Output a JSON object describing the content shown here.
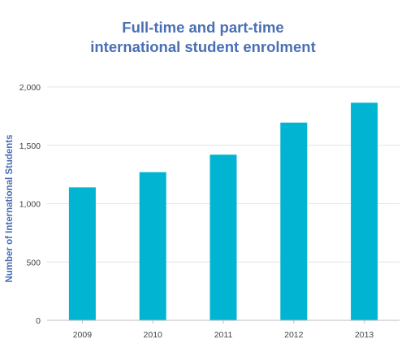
{
  "chart_data": {
    "type": "bar",
    "title_lines": [
      "Full-time and part-time",
      "international student enrolment"
    ],
    "xlabel": "",
    "ylabel": "Number of International Students",
    "categories": [
      "2009",
      "2010",
      "2011",
      "2012",
      "2013"
    ],
    "values": [
      1140,
      1270,
      1420,
      1695,
      1865
    ],
    "ylim": [
      0,
      2000
    ],
    "yticks": [
      0,
      500,
      1000,
      1500,
      2000
    ],
    "ytick_labels": [
      "0",
      "500",
      "1,000",
      "1,500",
      "2,000"
    ],
    "grid": true,
    "legend": "none",
    "colors": {
      "bar": "#00b4d2",
      "title": "#4a6fb5",
      "ylabel": "#4a6fb5",
      "grid": "#e4e4e4",
      "axis": "#bfbfbf",
      "tick_text": "#444444"
    }
  }
}
